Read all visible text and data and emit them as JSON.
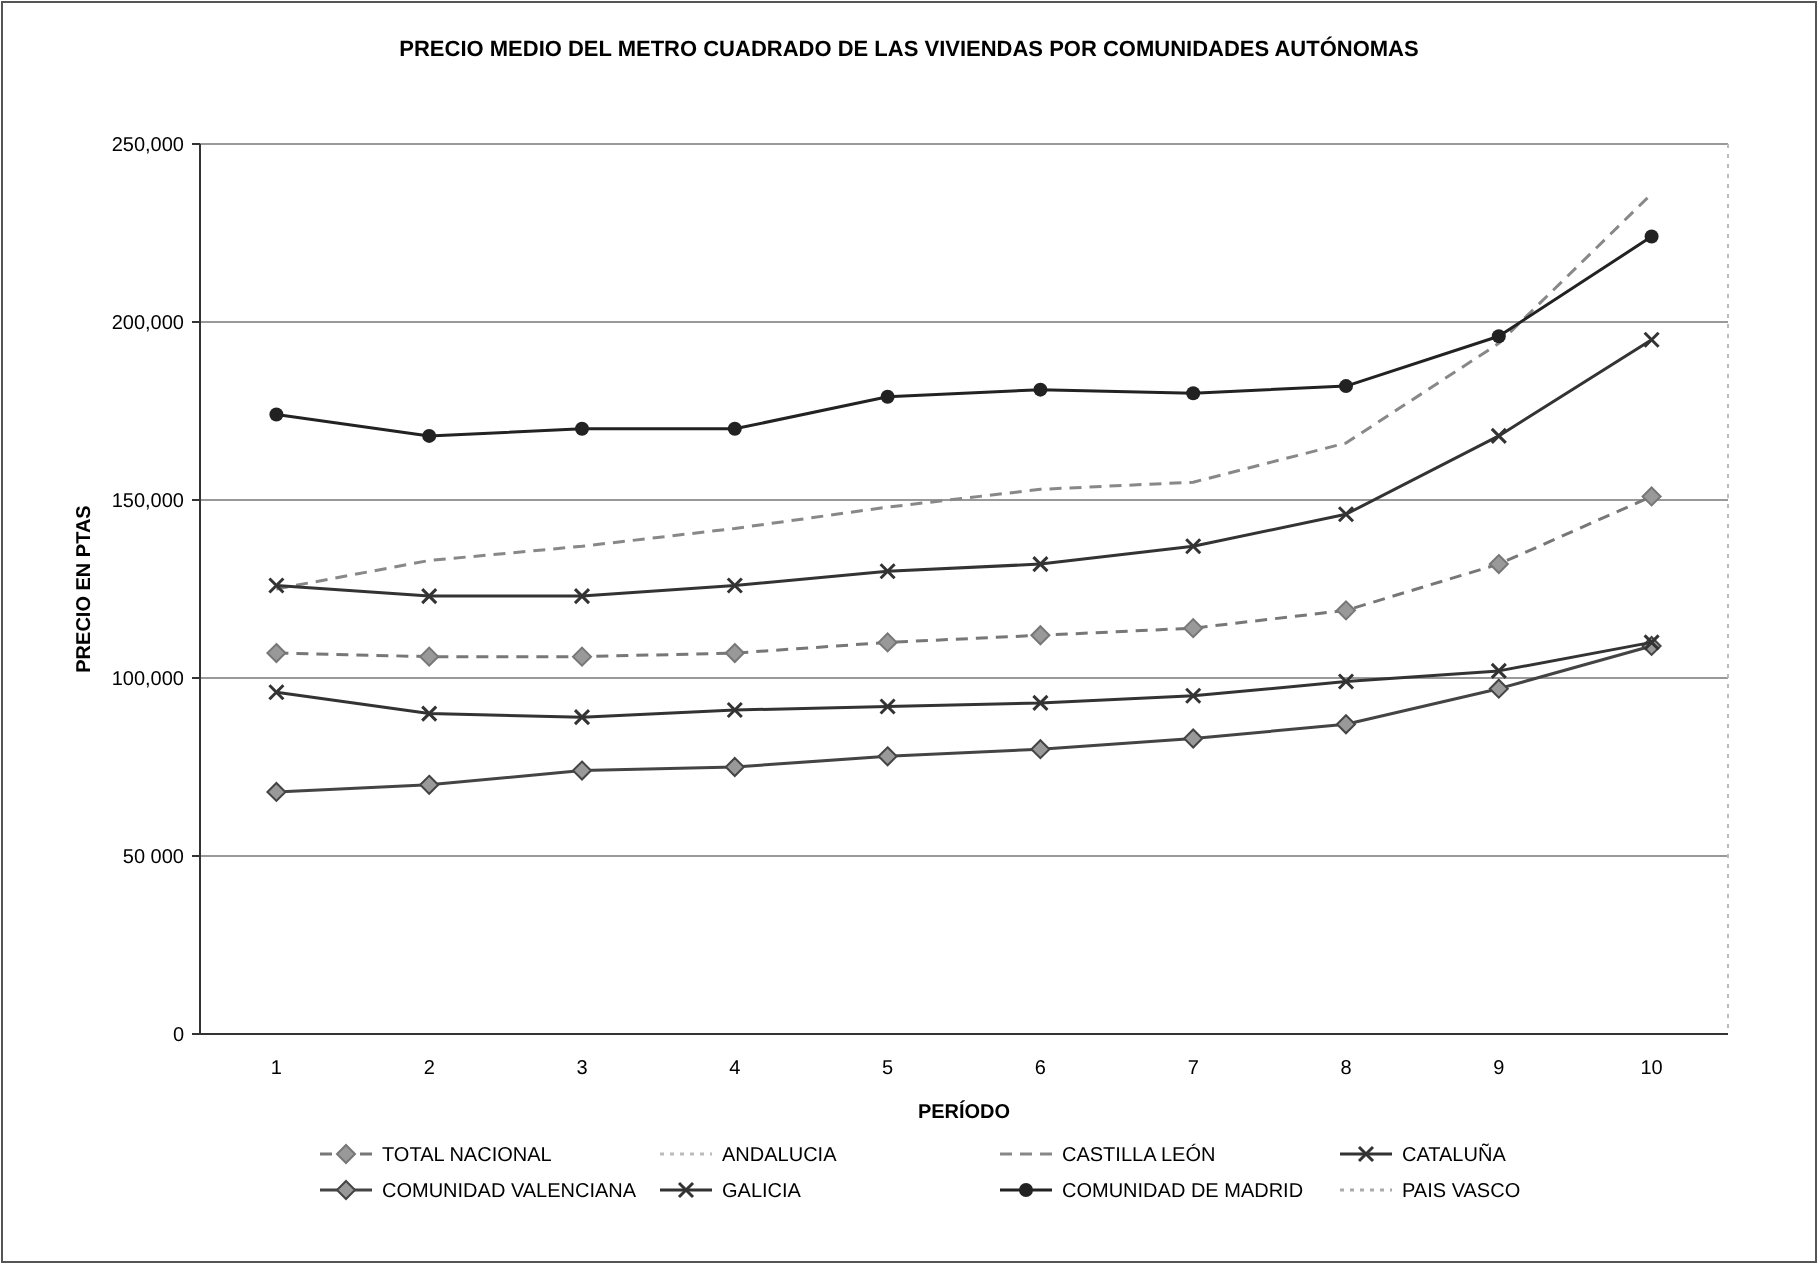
{
  "chart_data": {
    "type": "line",
    "title": "PRECIO MEDIO DEL METRO CUADRADO DE LAS VIVIENDAS POR COMUNIDADES AUTÓNOMAS",
    "xlabel": "PERÍODO",
    "ylabel": "PRECIO EN PTAS",
    "categories": [
      "1",
      "2",
      "3",
      "4",
      "5",
      "6",
      "7",
      "8",
      "9",
      "10"
    ],
    "ylim": [
      0,
      250000
    ],
    "yticks": [
      {
        "value": 0,
        "label": "0"
      },
      {
        "value": 50000,
        "label": "50 000"
      },
      {
        "value": 100000,
        "label": "100,000"
      },
      {
        "value": 150000,
        "label": "150,000"
      },
      {
        "value": 200000,
        "label": "200,000"
      },
      {
        "value": 250000,
        "label": "250,000"
      }
    ],
    "grid": "y",
    "legend": "bottom",
    "series": [
      {
        "name": "TOTAL NACIONAL",
        "color": "#777777",
        "line_style": "dashed",
        "marker": "diamond",
        "values": [
          107000,
          106000,
          106000,
          107000,
          110000,
          112000,
          114000,
          119000,
          132000,
          151000
        ]
      },
      {
        "name": "ANDALUCIA",
        "color": "#bbbbbb",
        "line_style": "dotted",
        "marker": "none",
        "values": [
          null,
          null,
          null,
          null,
          null,
          null,
          null,
          null,
          null,
          null
        ]
      },
      {
        "name": "CASTILLA LEÓN",
        "color": "#888888",
        "line_style": "dashed",
        "marker": "none",
        "values": [
          125000,
          133000,
          137000,
          142000,
          148000,
          153000,
          155000,
          166000,
          194000,
          236000
        ]
      },
      {
        "name": "CATALUÑA",
        "color": "#333333",
        "line_style": "solid",
        "marker": "cross",
        "values": [
          126000,
          123000,
          123000,
          126000,
          130000,
          132000,
          137000,
          146000,
          168000,
          195000
        ]
      },
      {
        "name": "COMUNIDAD VALENCIANA",
        "color": "#444444",
        "line_style": "solid",
        "marker": "diamond",
        "values": [
          68000,
          70000,
          74000,
          75000,
          78000,
          80000,
          83000,
          87000,
          97000,
          109000
        ]
      },
      {
        "name": "GALICIA",
        "color": "#333333",
        "line_style": "solid",
        "marker": "cross",
        "values": [
          96000,
          90000,
          89000,
          91000,
          92000,
          93000,
          95000,
          99000,
          102000,
          110000
        ]
      },
      {
        "name": "COMUNIDAD DE MADRID",
        "color": "#222222",
        "line_style": "solid",
        "marker": "circle",
        "values": [
          174000,
          168000,
          170000,
          170000,
          179000,
          181000,
          180000,
          182000,
          196000,
          224000
        ]
      },
      {
        "name": "PAIS VASCO",
        "color": "#aaaaaa",
        "line_style": "dotted",
        "marker": "none",
        "values": [
          null,
          null,
          null,
          null,
          null,
          null,
          null,
          null,
          null,
          null
        ]
      }
    ]
  }
}
